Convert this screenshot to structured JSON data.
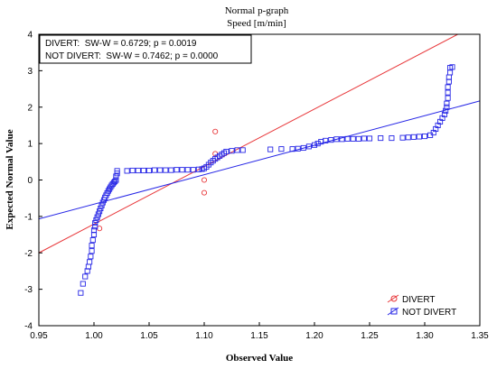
{
  "chart_data": {
    "type": "scatter",
    "title": "Normal p-graph",
    "subtitle": "Speed [m/min]",
    "xlabel": "Observed Value",
    "ylabel": "Expected Normal Value",
    "xlim": [
      0.95,
      1.35
    ],
    "ylim": [
      -4,
      4
    ],
    "x_ticks": [
      "0.95",
      "1.00",
      "1.05",
      "1.10",
      "1.15",
      "1.20",
      "1.25",
      "1.30",
      "1.35"
    ],
    "y_ticks": [
      "-4",
      "-3",
      "-2",
      "-1",
      "0",
      "1",
      "2",
      "3",
      "4"
    ],
    "grid": false,
    "legend_position": "bottom-right",
    "stats": [
      "DIVERT:  SW-W = 0.6729; p = 0.0019",
      "NOT DIVERT:  SW-W = 0.7462; p = 0.0000"
    ],
    "series": [
      {
        "name": "DIVERT",
        "marker": "circle",
        "color": "#e8383b",
        "points": [
          [
            1.005,
            -1.33
          ],
          [
            1.1,
            -0.35
          ],
          [
            1.1,
            0.0
          ],
          [
            1.11,
            0.72
          ],
          [
            1.11,
            1.33
          ]
        ],
        "fit_line": [
          [
            0.95,
            -2.0
          ],
          [
            1.33,
            4.0
          ]
        ]
      },
      {
        "name": "NOT DIVERT",
        "marker": "square",
        "color": "#2626e6",
        "points": [
          [
            0.988,
            -3.1
          ],
          [
            0.99,
            -2.85
          ],
          [
            0.992,
            -2.65
          ],
          [
            0.994,
            -2.5
          ],
          [
            0.995,
            -2.38
          ],
          [
            0.996,
            -2.25
          ],
          [
            0.997,
            -2.1
          ],
          [
            0.998,
            -1.95
          ],
          [
            0.998,
            -1.8
          ],
          [
            0.999,
            -1.65
          ],
          [
            1.0,
            -1.5
          ],
          [
            1.0,
            -1.38
          ],
          [
            1.001,
            -1.28
          ],
          [
            1.001,
            -1.18
          ],
          [
            1.002,
            -1.1
          ],
          [
            1.003,
            -1.02
          ],
          [
            1.004,
            -0.94
          ],
          [
            1.005,
            -0.86
          ],
          [
            1.006,
            -0.78
          ],
          [
            1.007,
            -0.7
          ],
          [
            1.008,
            -0.62
          ],
          [
            1.009,
            -0.55
          ],
          [
            1.01,
            -0.48
          ],
          [
            1.011,
            -0.42
          ],
          [
            1.012,
            -0.36
          ],
          [
            1.013,
            -0.3
          ],
          [
            1.014,
            -0.25
          ],
          [
            1.015,
            -0.2
          ],
          [
            1.016,
            -0.15
          ],
          [
            1.017,
            -0.11
          ],
          [
            1.018,
            -0.07
          ],
          [
            1.019,
            -0.04
          ],
          [
            1.02,
            0.0
          ],
          [
            1.02,
            0.1
          ],
          [
            1.021,
            0.18
          ],
          [
            1.021,
            0.25
          ],
          [
            1.03,
            0.25
          ],
          [
            1.035,
            0.26
          ],
          [
            1.04,
            0.26
          ],
          [
            1.045,
            0.26
          ],
          [
            1.05,
            0.26
          ],
          [
            1.055,
            0.27
          ],
          [
            1.06,
            0.27
          ],
          [
            1.065,
            0.27
          ],
          [
            1.07,
            0.27
          ],
          [
            1.075,
            0.28
          ],
          [
            1.08,
            0.28
          ],
          [
            1.085,
            0.28
          ],
          [
            1.09,
            0.28
          ],
          [
            1.095,
            0.29
          ],
          [
            1.098,
            0.3
          ],
          [
            1.1,
            0.32
          ],
          [
            1.102,
            0.36
          ],
          [
            1.104,
            0.42
          ],
          [
            1.106,
            0.48
          ],
          [
            1.108,
            0.53
          ],
          [
            1.11,
            0.58
          ],
          [
            1.112,
            0.62
          ],
          [
            1.114,
            0.66
          ],
          [
            1.116,
            0.7
          ],
          [
            1.118,
            0.74
          ],
          [
            1.12,
            0.78
          ],
          [
            1.125,
            0.8
          ],
          [
            1.13,
            0.82
          ],
          [
            1.135,
            0.82
          ],
          [
            1.16,
            0.84
          ],
          [
            1.17,
            0.85
          ],
          [
            1.18,
            0.85
          ],
          [
            1.185,
            0.86
          ],
          [
            1.19,
            0.88
          ],
          [
            1.195,
            0.92
          ],
          [
            1.2,
            0.96
          ],
          [
            1.203,
            1.0
          ],
          [
            1.206,
            1.05
          ],
          [
            1.21,
            1.08
          ],
          [
            1.215,
            1.1
          ],
          [
            1.22,
            1.12
          ],
          [
            1.225,
            1.12
          ],
          [
            1.23,
            1.13
          ],
          [
            1.235,
            1.13
          ],
          [
            1.24,
            1.13
          ],
          [
            1.245,
            1.14
          ],
          [
            1.25,
            1.14
          ],
          [
            1.26,
            1.15
          ],
          [
            1.27,
            1.15
          ],
          [
            1.28,
            1.16
          ],
          [
            1.285,
            1.17
          ],
          [
            1.29,
            1.18
          ],
          [
            1.295,
            1.19
          ],
          [
            1.3,
            1.2
          ],
          [
            1.305,
            1.23
          ],
          [
            1.308,
            1.3
          ],
          [
            1.31,
            1.4
          ],
          [
            1.312,
            1.5
          ],
          [
            1.314,
            1.6
          ],
          [
            1.316,
            1.7
          ],
          [
            1.318,
            1.8
          ],
          [
            1.319,
            1.9
          ],
          [
            1.32,
            2.0
          ],
          [
            1.32,
            2.1
          ],
          [
            1.321,
            2.25
          ],
          [
            1.321,
            2.4
          ],
          [
            1.321,
            2.55
          ],
          [
            1.322,
            2.7
          ],
          [
            1.322,
            2.82
          ],
          [
            1.323,
            2.95
          ],
          [
            1.323,
            3.08
          ],
          [
            1.325,
            3.1
          ]
        ],
        "fit_line": [
          [
            0.95,
            -1.07
          ],
          [
            1.35,
            2.17
          ]
        ]
      }
    ]
  }
}
